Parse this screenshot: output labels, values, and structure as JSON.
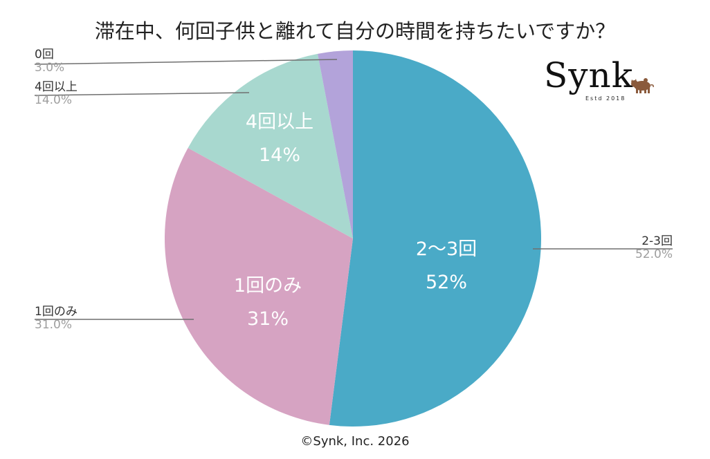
{
  "title": "滞在中、何回子供と離れて自分の時間を持ちたいですか？",
  "footer": "©Synk, Inc. 2026",
  "logo": {
    "wordmark": "Synk",
    "tagline": "Estd 2018",
    "icon": "pig-icon",
    "icon_color": "#8a5a3c"
  },
  "chart_data": {
    "type": "pie",
    "title": "滞在中、何回子供と離れて自分の時間を持ちたいですか？",
    "categories": [
      "2-3回",
      "1回のみ",
      "4回以上",
      "0回"
    ],
    "values": [
      52.0,
      31.0,
      14.0,
      3.0
    ],
    "colors": [
      "#4aaac7",
      "#d6a3c2",
      "#a8d8cf",
      "#b3a3da"
    ],
    "start_angle_deg": 0,
    "direction": "clockwise",
    "inside_labels": [
      {
        "category": "2～3回",
        "percent": "52%"
      },
      {
        "category": "1回のみ",
        "percent": "31%"
      },
      {
        "category": "4回以上",
        "percent": "14%"
      },
      {
        "category": "",
        "percent": ""
      }
    ],
    "outside_labels": [
      {
        "category": "2-3回",
        "percent": "52.0%"
      },
      {
        "category": "1回のみ",
        "percent": "31.0%"
      },
      {
        "category": "4回以上",
        "percent": "14.0%"
      },
      {
        "category": "0回",
        "percent": "3.0%"
      }
    ],
    "legend": "none (callout labels)"
  }
}
